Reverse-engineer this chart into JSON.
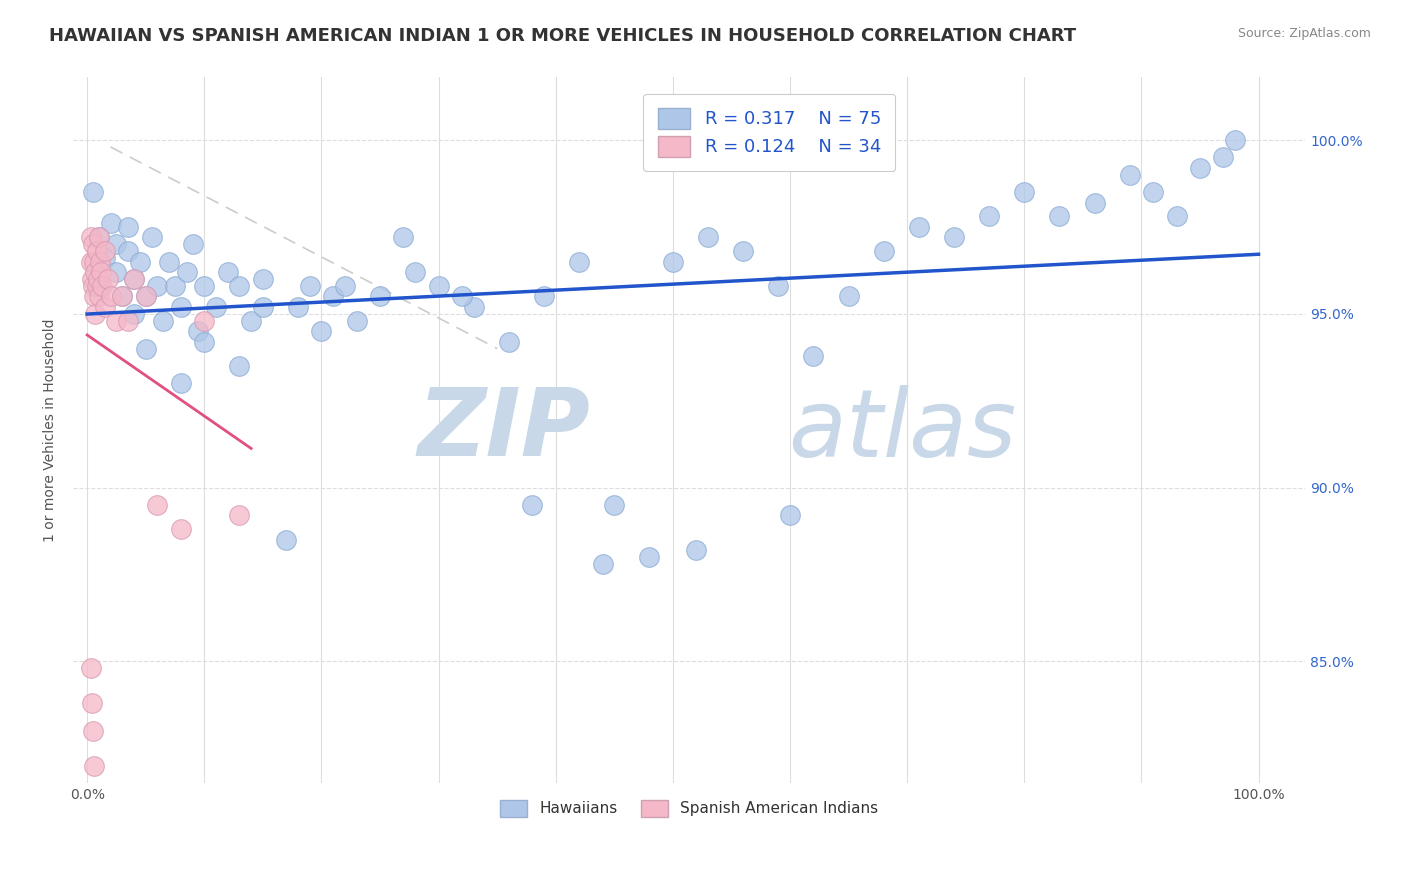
{
  "title": "HAWAIIAN VS SPANISH AMERICAN INDIAN 1 OR MORE VEHICLES IN HOUSEHOLD CORRELATION CHART",
  "source": "Source: ZipAtlas.com",
  "ylabel": "1 or more Vehicles in Household",
  "legend_entries": [
    {
      "label": "Hawaiians",
      "color": "#aec6e8",
      "R": "0.317",
      "N": "75"
    },
    {
      "label": "Spanish American Indians",
      "color": "#f4b8c8",
      "R": "0.124",
      "N": "34"
    }
  ],
  "watermark_zip": "ZIP",
  "watermark_atlas": "atlas",
  "blue_line_color": "#2255cc",
  "pink_line_color": "#e05080",
  "dot_color_blue": "#aec6e8",
  "dot_color_pink": "#f4b8c8",
  "background_color": "#ffffff",
  "title_fontsize": 13,
  "ylabel_fontsize": 10,
  "tick_fontsize": 10,
  "watermark_color_zip": "#c8d8e8",
  "watermark_color_atlas": "#c8d8e8",
  "ylim_min": 0.815,
  "ylim_max": 1.018,
  "xlim_min": -0.012,
  "xlim_max": 1.04,
  "hawaiian_x": [
    0.005,
    0.01,
    0.01,
    0.015,
    0.02,
    0.025,
    0.025,
    0.03,
    0.035,
    0.035,
    0.04,
    0.04,
    0.045,
    0.05,
    0.055,
    0.06,
    0.065,
    0.07,
    0.075,
    0.08,
    0.085,
    0.09,
    0.095,
    0.1,
    0.11,
    0.12,
    0.13,
    0.14,
    0.15,
    0.17,
    0.19,
    0.21,
    0.23,
    0.25,
    0.27,
    0.3,
    0.33,
    0.36,
    0.39,
    0.42,
    0.45,
    0.48,
    0.5,
    0.53,
    0.56,
    0.59,
    0.62,
    0.65,
    0.68,
    0.71,
    0.74,
    0.77,
    0.8,
    0.83,
    0.86,
    0.89,
    0.91,
    0.93,
    0.95,
    0.97,
    0.05,
    0.08,
    0.1,
    0.13,
    0.15,
    0.18,
    0.2,
    0.22,
    0.28,
    0.32,
    0.38,
    0.44,
    0.52,
    0.6,
    0.98
  ],
  "hawaiian_y": [
    0.985,
    0.972,
    0.958,
    0.966,
    0.976,
    0.962,
    0.97,
    0.955,
    0.968,
    0.975,
    0.96,
    0.95,
    0.965,
    0.955,
    0.972,
    0.958,
    0.948,
    0.965,
    0.958,
    0.952,
    0.962,
    0.97,
    0.945,
    0.958,
    0.952,
    0.962,
    0.958,
    0.948,
    0.952,
    0.885,
    0.958,
    0.955,
    0.948,
    0.955,
    0.972,
    0.958,
    0.952,
    0.942,
    0.955,
    0.965,
    0.895,
    0.88,
    0.965,
    0.972,
    0.968,
    0.958,
    0.938,
    0.955,
    0.968,
    0.975,
    0.972,
    0.978,
    0.985,
    0.978,
    0.982,
    0.99,
    0.985,
    0.978,
    0.992,
    0.995,
    0.94,
    0.93,
    0.942,
    0.935,
    0.96,
    0.952,
    0.945,
    0.958,
    0.962,
    0.955,
    0.895,
    0.878,
    0.882,
    0.892,
    1.0
  ],
  "spanish_x": [
    0.003,
    0.003,
    0.004,
    0.005,
    0.005,
    0.006,
    0.006,
    0.007,
    0.007,
    0.008,
    0.008,
    0.009,
    0.01,
    0.01,
    0.011,
    0.012,
    0.013,
    0.015,
    0.015,
    0.018,
    0.02,
    0.025,
    0.03,
    0.035,
    0.04,
    0.05,
    0.06,
    0.08,
    0.1,
    0.13,
    0.003,
    0.004,
    0.005,
    0.006
  ],
  "spanish_y": [
    0.972,
    0.965,
    0.96,
    0.97,
    0.958,
    0.965,
    0.955,
    0.962,
    0.95,
    0.968,
    0.958,
    0.96,
    0.972,
    0.955,
    0.965,
    0.962,
    0.958,
    0.952,
    0.968,
    0.96,
    0.955,
    0.948,
    0.955,
    0.948,
    0.96,
    0.955,
    0.895,
    0.888,
    0.948,
    0.892,
    0.848,
    0.838,
    0.83,
    0.82
  ],
  "ref_line_x": [
    0.0,
    0.3
  ],
  "ref_line_y_start": 1.0,
  "ref_line_y_end": 0.93
}
